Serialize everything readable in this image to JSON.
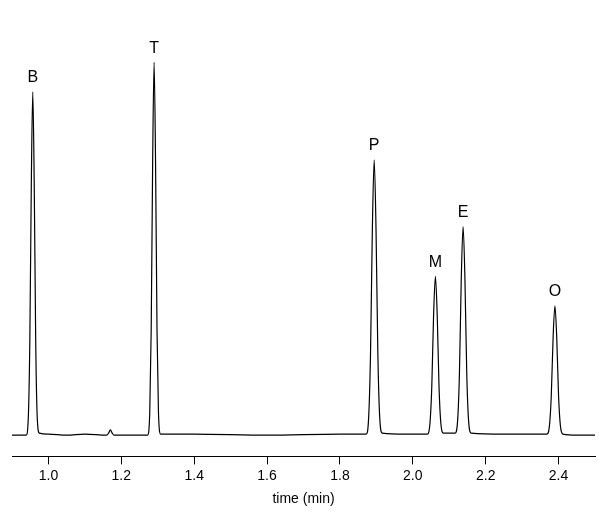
{
  "chart_data": {
    "type": "line",
    "x_label": "time (min)",
    "x": [
      0.9,
      0.939,
      0.945,
      0.949,
      0.953,
      0.957,
      0.961,
      0.965,
      0.969,
      0.975,
      1.0,
      1.05,
      1.1,
      1.16,
      1.165,
      1.17,
      1.175,
      1.18,
      1.25,
      1.272,
      1.278,
      1.282,
      1.286,
      1.29,
      1.294,
      1.298,
      1.302,
      1.308,
      1.4,
      1.6,
      1.8,
      1.872,
      1.879,
      1.884,
      1.889,
      1.894,
      1.899,
      1.904,
      1.909,
      1.916,
      1.98,
      2.04,
      2.047,
      2.052,
      2.057,
      2.062,
      2.067,
      2.072,
      2.077,
      2.084,
      2.1,
      2.116,
      2.123,
      2.128,
      2.133,
      2.138,
      2.143,
      2.148,
      2.153,
      2.16,
      2.25,
      2.368,
      2.375,
      2.38,
      2.385,
      2.39,
      2.395,
      2.4,
      2.405,
      2.412,
      2.45,
      2.5
    ],
    "values": [
      0,
      0,
      19,
      91,
      237,
      324,
      237,
      91,
      19,
      2,
      1,
      0,
      1,
      0,
      2,
      5,
      2,
      0,
      0,
      0,
      21,
      99,
      257,
      352,
      257,
      99,
      21,
      1,
      1,
      0,
      1,
      1,
      18,
      78,
      195,
      260,
      195,
      78,
      18,
      2,
      1,
      1,
      11,
      45,
      113,
      150,
      113,
      45,
      11,
      2,
      2,
      2,
      14,
      59,
      148,
      197,
      148,
      59,
      14,
      2,
      1,
      1,
      9,
      37,
      92,
      122,
      92,
      37,
      9,
      1,
      0,
      0
    ],
    "color": "#000000",
    "xlim": [
      0.9,
      2.5
    ],
    "xticks": [
      {
        "value": 1.0,
        "label": "1.0"
      },
      {
        "value": 1.2,
        "label": "1.2"
      },
      {
        "value": 1.4,
        "label": "1.4"
      },
      {
        "value": 1.6,
        "label": "1.6"
      },
      {
        "value": 1.8,
        "label": "1.8"
      },
      {
        "value": 2.0,
        "label": "2.0"
      },
      {
        "value": 2.2,
        "label": "2.2"
      },
      {
        "value": 2.4,
        "label": "2.4"
      }
    ],
    "ylim": [
      -20,
      390
    ],
    "tick_labels": "x",
    "grid": false,
    "annotations": [
      {
        "text": "B",
        "x": 0.957,
        "y": 324
      },
      {
        "text": "T",
        "x": 1.29,
        "y": 352
      },
      {
        "text": "P",
        "x": 1.894,
        "y": 260
      },
      {
        "text": "M",
        "x": 2.062,
        "y": 150
      },
      {
        "text": "E",
        "x": 2.138,
        "y": 197
      },
      {
        "text": "O",
        "x": 2.39,
        "y": 122
      }
    ]
  }
}
